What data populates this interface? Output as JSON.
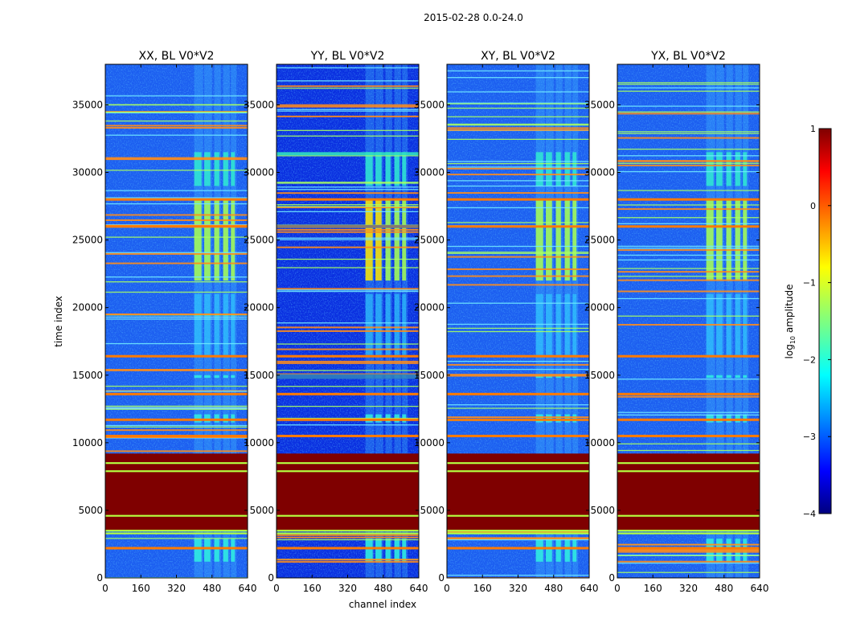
{
  "chart_data": {
    "type": "heatmap",
    "suptitle": "2015-02-28 0.0-24.0",
    "xlabel": "channel index",
    "ylabel": "time index",
    "xlim": [
      0,
      640
    ],
    "ylim": [
      0,
      38000
    ],
    "xticks": [
      0,
      160,
      320,
      480,
      640
    ],
    "yticks": [
      0,
      5000,
      10000,
      15000,
      20000,
      25000,
      30000,
      35000
    ],
    "panels": [
      {
        "title": "XX, BL V0*V2",
        "pol": "XX"
      },
      {
        "title": "YY, BL V0*V2",
        "pol": "YY"
      },
      {
        "title": "XY, BL V0*V2",
        "pol": "XY"
      },
      {
        "title": "YX, BL V0*V2",
        "pol": "YX"
      }
    ],
    "colorbar": {
      "label": "log10 amplitude",
      "label_base": "log",
      "label_sub": "10",
      "label_rest": " amplitude",
      "range": [
        -4,
        1
      ],
      "ticks": [
        1,
        0,
        -1,
        -2,
        -3,
        -4
      ],
      "tick_labels": [
        "1",
        "0",
        "−1",
        "−2",
        "−3",
        "−4"
      ],
      "colormap": "jet"
    },
    "saturated_time_ranges": [
      [
        3500,
        9200
      ]
    ],
    "rfi_channel_range": [
      400,
      590
    ],
    "bright_rfi_time_ranges": [
      [
        22000,
        28000
      ],
      [
        14800,
        15000
      ],
      [
        11500,
        12100
      ],
      [
        1200,
        2900
      ]
    ]
  }
}
